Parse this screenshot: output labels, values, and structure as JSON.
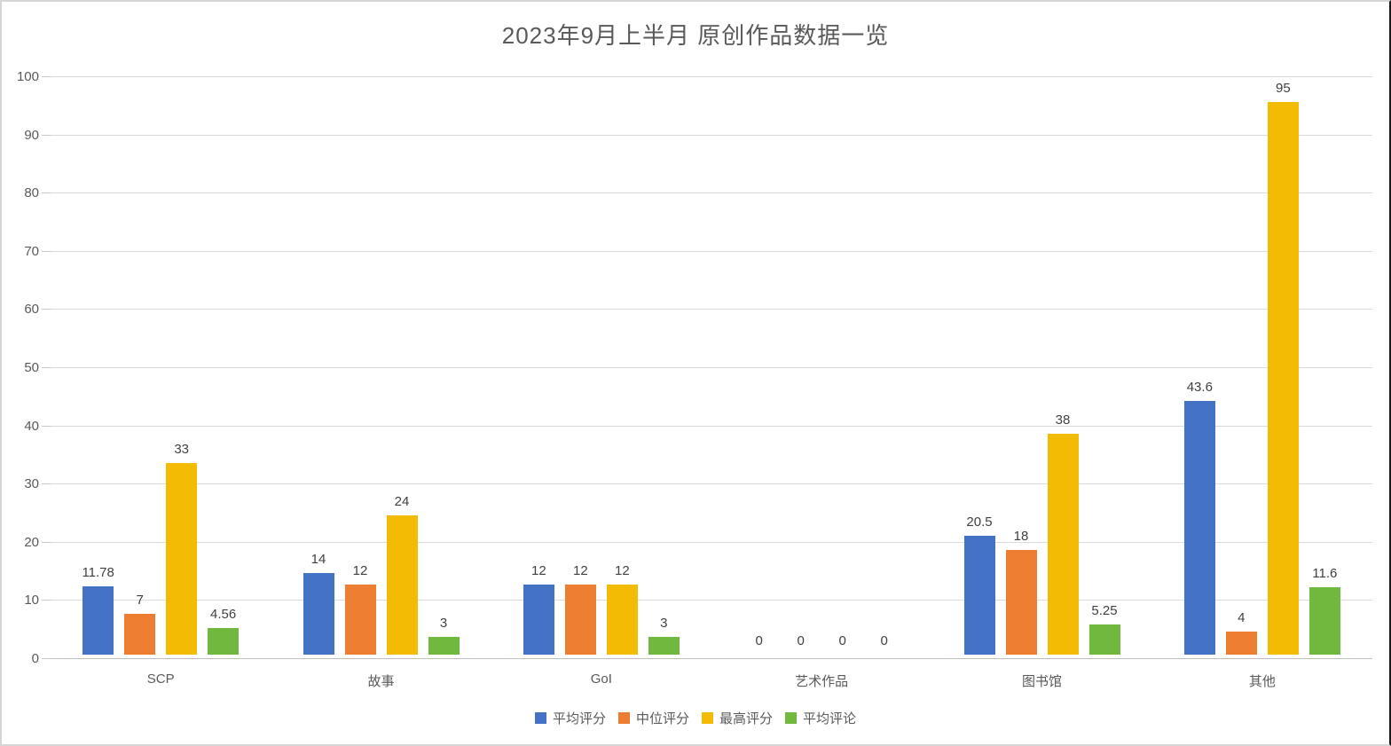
{
  "chart_data": {
    "type": "bar",
    "title": "2023年9月上半月 原创作品数据一览",
    "categories": [
      "SCP",
      "故事",
      "GoI",
      "艺术作品",
      "图书馆",
      "其他"
    ],
    "series": [
      {
        "name": "平均评分",
        "color": "#4472C4",
        "values": [
          11.78,
          14,
          12,
          0,
          20.5,
          43.6
        ]
      },
      {
        "name": "中位评分",
        "color": "#ED7D31",
        "values": [
          7,
          12,
          12,
          0,
          18,
          4
        ]
      },
      {
        "name": "最高评分",
        "color": "#F4BB04",
        "values": [
          33,
          24,
          12,
          0,
          38,
          95
        ]
      },
      {
        "name": "平均评论",
        "color": "#71B83E",
        "values": [
          4.56,
          3,
          3,
          0,
          5.25,
          11.6
        ]
      }
    ],
    "y_axis": {
      "min": 0,
      "max": 100,
      "step": 10,
      "ticks": [
        "0",
        "10",
        "20",
        "30",
        "40",
        "50",
        "60",
        "70",
        "80",
        "90",
        "100"
      ]
    },
    "grid": true,
    "legend_position": "bottom",
    "data_labels": true
  }
}
